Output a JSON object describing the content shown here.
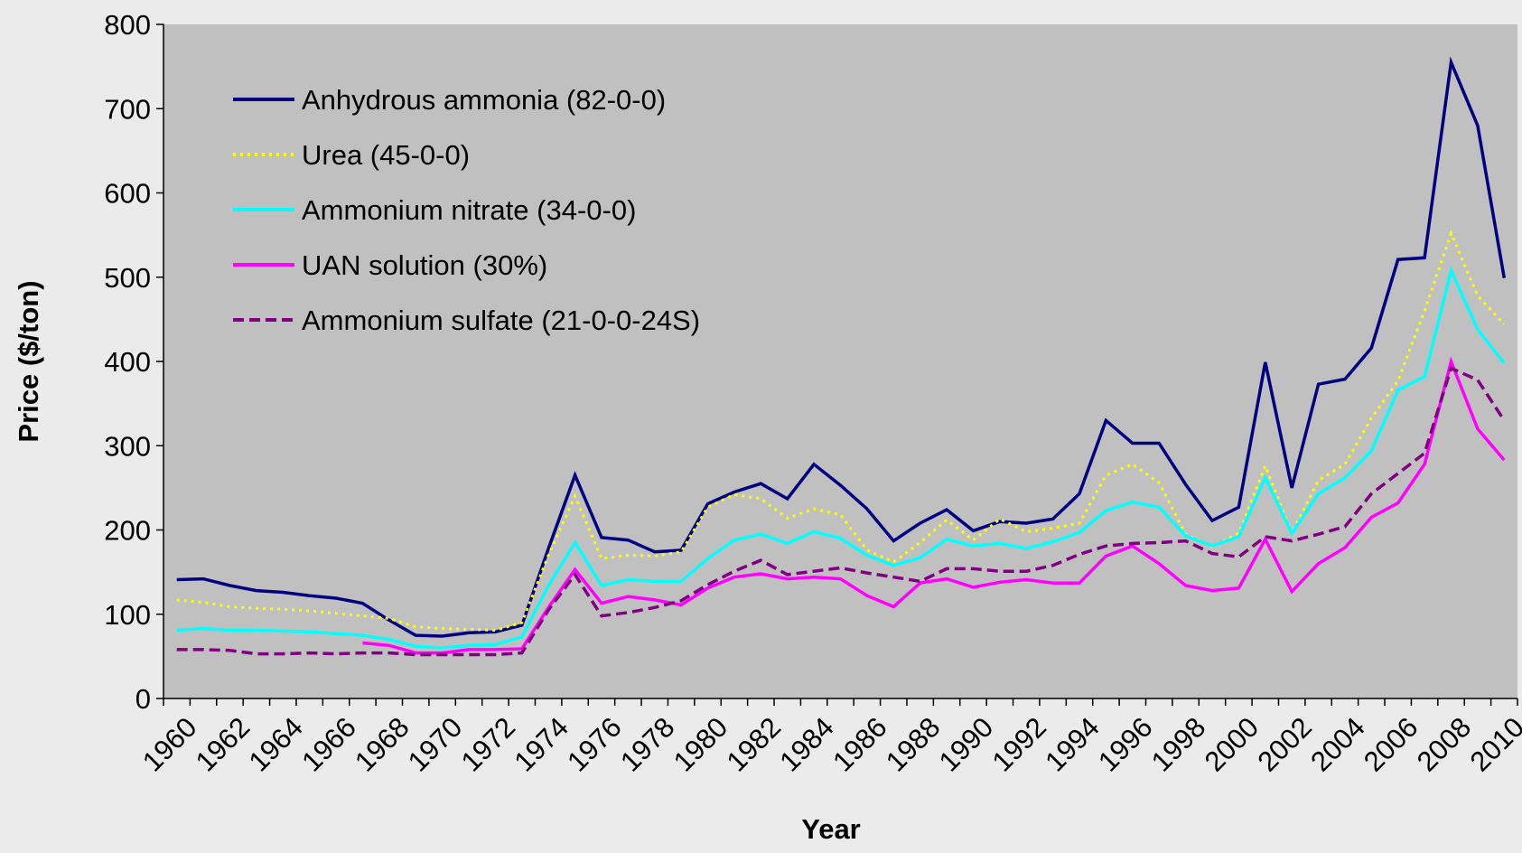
{
  "chart_data": {
    "type": "line",
    "x_label": "Year",
    "y_label": "Price ($/ton)",
    "categories": [
      "1960",
      null,
      "1962",
      null,
      "1964",
      null,
      "1966",
      null,
      "1968",
      null,
      "1970",
      null,
      "1972",
      null,
      "1974",
      null,
      "1976",
      null,
      "1978",
      null,
      "1980",
      null,
      "1982",
      null,
      "1984",
      null,
      "1986",
      null,
      "1988",
      null,
      "1990",
      null,
      "1992",
      null,
      "1994",
      null,
      "1996",
      null,
      "1998",
      null,
      "2000",
      null,
      "2002",
      null,
      "2004",
      null,
      "2006",
      null,
      "2008",
      null,
      "2010"
    ],
    "ylim": [
      0,
      800
    ],
    "yticks": [
      0,
      100,
      200,
      300,
      400,
      500,
      600,
      700,
      800
    ],
    "legend": "upper left",
    "background": "#c0c0c0",
    "series": [
      {
        "name": "Anhydrous ammonia (82-0-0)",
        "color": "#000080",
        "dash": "solid",
        "values": [
          141,
          142,
          134,
          128,
          126,
          122,
          119,
          113,
          93,
          75,
          74,
          78,
          79,
          87,
          178,
          265,
          191,
          188,
          174,
          176,
          231,
          245,
          255,
          237,
          278,
          253,
          225,
          187,
          208,
          224,
          199,
          210,
          208,
          213,
          243,
          330,
          303,
          303,
          254,
          211,
          227,
          399,
          250,
          373,
          379,
          416,
          521,
          523,
          755,
          680,
          499
        ]
      },
      {
        "name": "Urea (45-0-0)",
        "color": "#ffff00",
        "dash": "dotted",
        "values": [
          117,
          114,
          109,
          107,
          106,
          104,
          101,
          98,
          95,
          85,
          83,
          82,
          81,
          90,
          170,
          240,
          166,
          170,
          169,
          174,
          227,
          242,
          237,
          214,
          225,
          218,
          176,
          162,
          185,
          212,
          188,
          213,
          198,
          202,
          208,
          265,
          278,
          256,
          195,
          180,
          196,
          276,
          196,
          259,
          278,
          333,
          377,
          460,
          552,
          478,
          444
        ]
      },
      {
        "name": "Ammonium nitrate (34-0-0)",
        "color": "#00ffff",
        "dash": "solid",
        "values": [
          81,
          83,
          81,
          81,
          80,
          79,
          77,
          75,
          70,
          62,
          60,
          63,
          64,
          73,
          134,
          185,
          134,
          141,
          139,
          139,
          166,
          188,
          195,
          184,
          198,
          190,
          170,
          158,
          167,
          189,
          181,
          184,
          178,
          186,
          197,
          223,
          233,
          227,
          193,
          181,
          192,
          262,
          196,
          243,
          262,
          294,
          366,
          382,
          508,
          438,
          398
        ]
      },
      {
        "name": "UAN solution (30%)",
        "color": "#ff00ff",
        "dash": "solid",
        "values": [
          null,
          null,
          null,
          null,
          null,
          null,
          null,
          66,
          63,
          54,
          54,
          58,
          58,
          59,
          108,
          153,
          113,
          121,
          117,
          111,
          131,
          144,
          148,
          142,
          144,
          142,
          122,
          109,
          137,
          142,
          132,
          138,
          141,
          137,
          137,
          169,
          181,
          160,
          134,
          128,
          131,
          189,
          127,
          160,
          179,
          215,
          232,
          278,
          400,
          320,
          283
        ]
      },
      {
        "name": "Ammonium sulfate (21-0-0-24S)",
        "color": "#800080",
        "dash": "dashed",
        "values": [
          58,
          58,
          57,
          53,
          53,
          54,
          53,
          54,
          54,
          52,
          52,
          52,
          52,
          54,
          105,
          147,
          98,
          102,
          108,
          116,
          135,
          151,
          164,
          147,
          151,
          155,
          149,
          144,
          139,
          154,
          154,
          151,
          151,
          158,
          171,
          181,
          184,
          185,
          187,
          172,
          168,
          192,
          187,
          195,
          204,
          243,
          267,
          291,
          392,
          378,
          330
        ]
      }
    ]
  }
}
